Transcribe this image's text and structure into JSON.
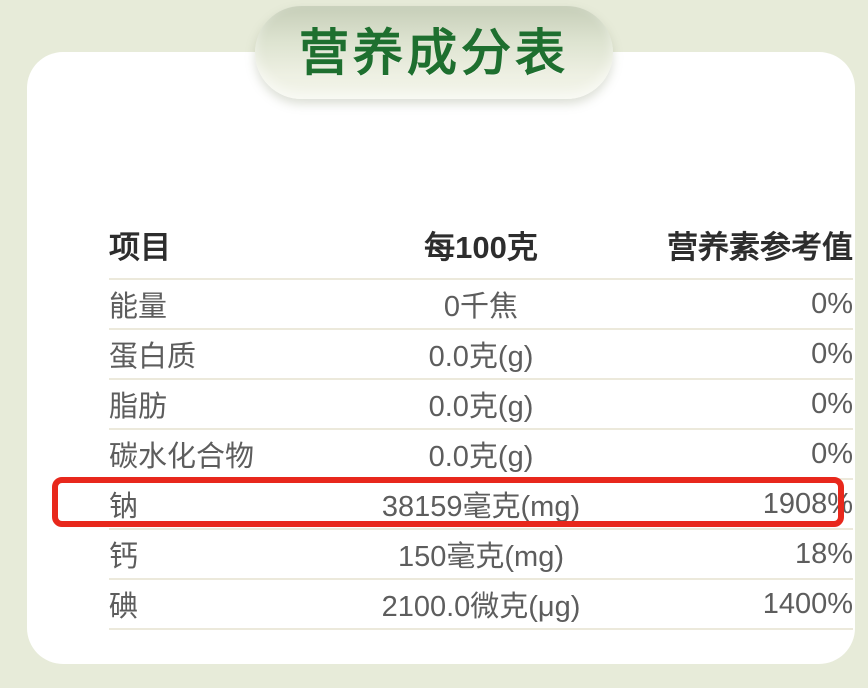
{
  "title": "营养成分表",
  "table": {
    "headers": [
      "项目",
      "每100克",
      "营养素参考值"
    ],
    "rows": [
      {
        "name": "能量",
        "per100g": "0千焦",
        "nrv": "0%"
      },
      {
        "name": "蛋白质",
        "per100g": "0.0克(g)",
        "nrv": "0%"
      },
      {
        "name": "脂肪",
        "per100g": "0.0克(g)",
        "nrv": "0%"
      },
      {
        "name": "碳水化合物",
        "per100g": "0.0克(g)",
        "nrv": "0%"
      },
      {
        "name": "钠",
        "per100g": "38159毫克(mg)",
        "nrv": "1908%"
      },
      {
        "name": "钙",
        "per100g": "150毫克(mg)",
        "nrv": "18%",
        "highlighted": true
      },
      {
        "name": "碘",
        "per100g": "2100.0微克(μg)",
        "nrv": "1400%"
      }
    ]
  },
  "highlight": {
    "row": "钙",
    "color": "#e8281c"
  },
  "colors": {
    "background_green": "#e7ebd9",
    "card_white": "#ffffff",
    "title_green": "#1e6f2f",
    "pill_gradient_top": "#c6ceb8",
    "pill_gradient_bottom": "#f2f4e9",
    "header_text": "#2d2d2d",
    "row_text": "#5d5d5d",
    "divider": "#ece9db",
    "highlight_red": "#e8281c"
  }
}
